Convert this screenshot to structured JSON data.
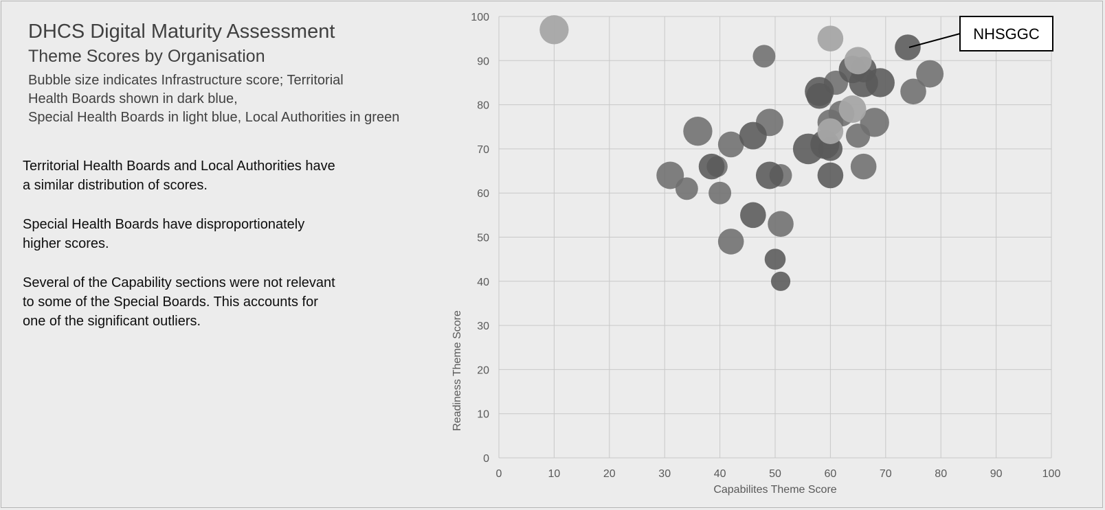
{
  "title": "DHCS Digital Maturity Assessment",
  "subtitle": "Theme Scores by Organisation",
  "description_lines": [
    "Bubble size indicates Infrastructure score; Territorial",
    "Health Boards shown in dark blue,",
    "Special Health Boards in light blue, Local Authorities in green"
  ],
  "paragraphs": [
    [
      "Territorial Health Boards and Local Authorities have",
      "a similar distribution of scores."
    ],
    [
      "Special Health Boards have disproportionately",
      "higher scores."
    ],
    [
      "Several of the Capability sections were not relevant",
      "to some of the Special Boards. This accounts for",
      "one of the significant outliers."
    ]
  ],
  "colors": {
    "background": "#ececec",
    "grid": "#c8c8c8",
    "bubble_dark": "#595959",
    "bubble_medium": "#6e6e6e",
    "bubble_light": "#a6a6a6",
    "callout_border": "#000000"
  },
  "callout": {
    "label": "NHSGGC",
    "target": [
      74,
      93
    ]
  },
  "chart_data": {
    "type": "scatter",
    "variant": "bubble",
    "xlabel": "Capabilites Theme Score",
    "ylabel": "Readiness Theme Score",
    "xlim": [
      0,
      100
    ],
    "ylim": [
      0,
      100
    ],
    "xticks": [
      0,
      10,
      20,
      30,
      40,
      50,
      60,
      70,
      80,
      90,
      100
    ],
    "yticks": [
      0,
      10,
      20,
      30,
      40,
      50,
      60,
      70,
      80,
      90,
      100
    ],
    "grid": true,
    "size_encodes": "Infrastructure score",
    "points": [
      {
        "x": 10,
        "y": 97,
        "size": 9,
        "shade": "light"
      },
      {
        "x": 60,
        "y": 95,
        "size": 8,
        "shade": "light"
      },
      {
        "x": 65,
        "y": 90,
        "size": 8.5,
        "shade": "light"
      },
      {
        "x": 64,
        "y": 79,
        "size": 8.5,
        "shade": "light"
      },
      {
        "x": 60,
        "y": 74,
        "size": 8,
        "shade": "light"
      },
      {
        "x": 48,
        "y": 91,
        "size": 7,
        "shade": "medium"
      },
      {
        "x": 74,
        "y": 93,
        "size": 8,
        "shade": "dark"
      },
      {
        "x": 78,
        "y": 87,
        "size": 8.5,
        "shade": "medium"
      },
      {
        "x": 75,
        "y": 83,
        "size": 8,
        "shade": "medium"
      },
      {
        "x": 69,
        "y": 85,
        "size": 9,
        "shade": "dark"
      },
      {
        "x": 66,
        "y": 85,
        "size": 9,
        "shade": "dark"
      },
      {
        "x": 66,
        "y": 88,
        "size": 8,
        "shade": "dark"
      },
      {
        "x": 64,
        "y": 88,
        "size": 8.5,
        "shade": "dark"
      },
      {
        "x": 61,
        "y": 85,
        "size": 7.5,
        "shade": "medium"
      },
      {
        "x": 58,
        "y": 83,
        "size": 9,
        "shade": "dark"
      },
      {
        "x": 58,
        "y": 82,
        "size": 8,
        "shade": "dark"
      },
      {
        "x": 62,
        "y": 78,
        "size": 8,
        "shade": "medium"
      },
      {
        "x": 68,
        "y": 76,
        "size": 9,
        "shade": "medium"
      },
      {
        "x": 65,
        "y": 73,
        "size": 7.5,
        "shade": "medium"
      },
      {
        "x": 66,
        "y": 66,
        "size": 8,
        "shade": "medium"
      },
      {
        "x": 60,
        "y": 76,
        "size": 8,
        "shade": "medium"
      },
      {
        "x": 59,
        "y": 71,
        "size": 9,
        "shade": "dark"
      },
      {
        "x": 56,
        "y": 70,
        "size": 9.5,
        "shade": "dark"
      },
      {
        "x": 60,
        "y": 70,
        "size": 7.5,
        "shade": "dark"
      },
      {
        "x": 60,
        "y": 64,
        "size": 8,
        "shade": "dark"
      },
      {
        "x": 49,
        "y": 76,
        "size": 8.5,
        "shade": "medium"
      },
      {
        "x": 46,
        "y": 73,
        "size": 8.5,
        "shade": "dark"
      },
      {
        "x": 42,
        "y": 71,
        "size": 8,
        "shade": "medium"
      },
      {
        "x": 36,
        "y": 74,
        "size": 9,
        "shade": "medium"
      },
      {
        "x": 38.5,
        "y": 66,
        "size": 8,
        "shade": "dark"
      },
      {
        "x": 39.5,
        "y": 66,
        "size": 6.5,
        "shade": "medium"
      },
      {
        "x": 31,
        "y": 64,
        "size": 8.5,
        "shade": "medium"
      },
      {
        "x": 34,
        "y": 61,
        "size": 7,
        "shade": "medium"
      },
      {
        "x": 40,
        "y": 60,
        "size": 7,
        "shade": "medium"
      },
      {
        "x": 49,
        "y": 64,
        "size": 8.5,
        "shade": "dark"
      },
      {
        "x": 51,
        "y": 64,
        "size": 7,
        "shade": "medium"
      },
      {
        "x": 46,
        "y": 55,
        "size": 8,
        "shade": "dark"
      },
      {
        "x": 51,
        "y": 53,
        "size": 8,
        "shade": "medium"
      },
      {
        "x": 42,
        "y": 49,
        "size": 8,
        "shade": "medium"
      },
      {
        "x": 50,
        "y": 45,
        "size": 6.5,
        "shade": "dark"
      },
      {
        "x": 51,
        "y": 40,
        "size": 6,
        "shade": "dark"
      }
    ]
  }
}
